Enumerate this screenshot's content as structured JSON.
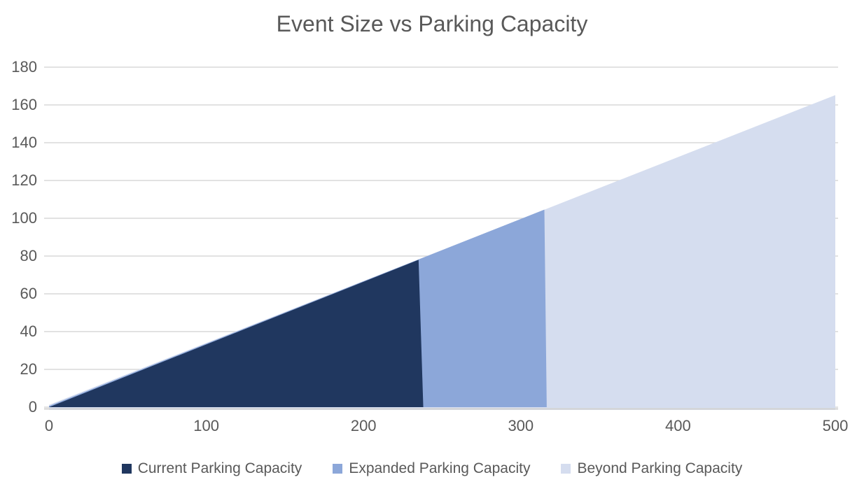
{
  "chart_data": {
    "type": "area",
    "title": "Event Size vs Parking Capacity",
    "xlabel": "",
    "ylabel": "",
    "xlim": [
      0,
      500
    ],
    "ylim": [
      0,
      180
    ],
    "x_ticks": [
      0,
      100,
      200,
      300,
      400,
      500
    ],
    "y_ticks": [
      0,
      20,
      40,
      60,
      80,
      100,
      120,
      140,
      160,
      180
    ],
    "grid": "horizontal gridlines",
    "legend_position": "bottom",
    "background_color": "#FFFFFF",
    "text_color": "#595959",
    "gridline_color": "#D9D9D9",
    "axis_line_color": "#D2D2D2",
    "series": [
      {
        "name": "Current Parking Capacity",
        "color": "#20375F",
        "x_start": 0,
        "x_end": 235,
        "points": [
          [
            0,
            0
          ],
          [
            235,
            78
          ]
        ]
      },
      {
        "name": "Expanded Parking Capacity",
        "color": "#8CA7D9",
        "x_start": 235,
        "x_end": 315,
        "points": [
          [
            235,
            78
          ],
          [
            315,
            104
          ]
        ]
      },
      {
        "name": "Beyond Parking Capacity",
        "color": "#D5DDEF",
        "x_start": 315,
        "x_end": 500,
        "points": [
          [
            315,
            104
          ],
          [
            500,
            164
          ]
        ]
      }
    ]
  }
}
